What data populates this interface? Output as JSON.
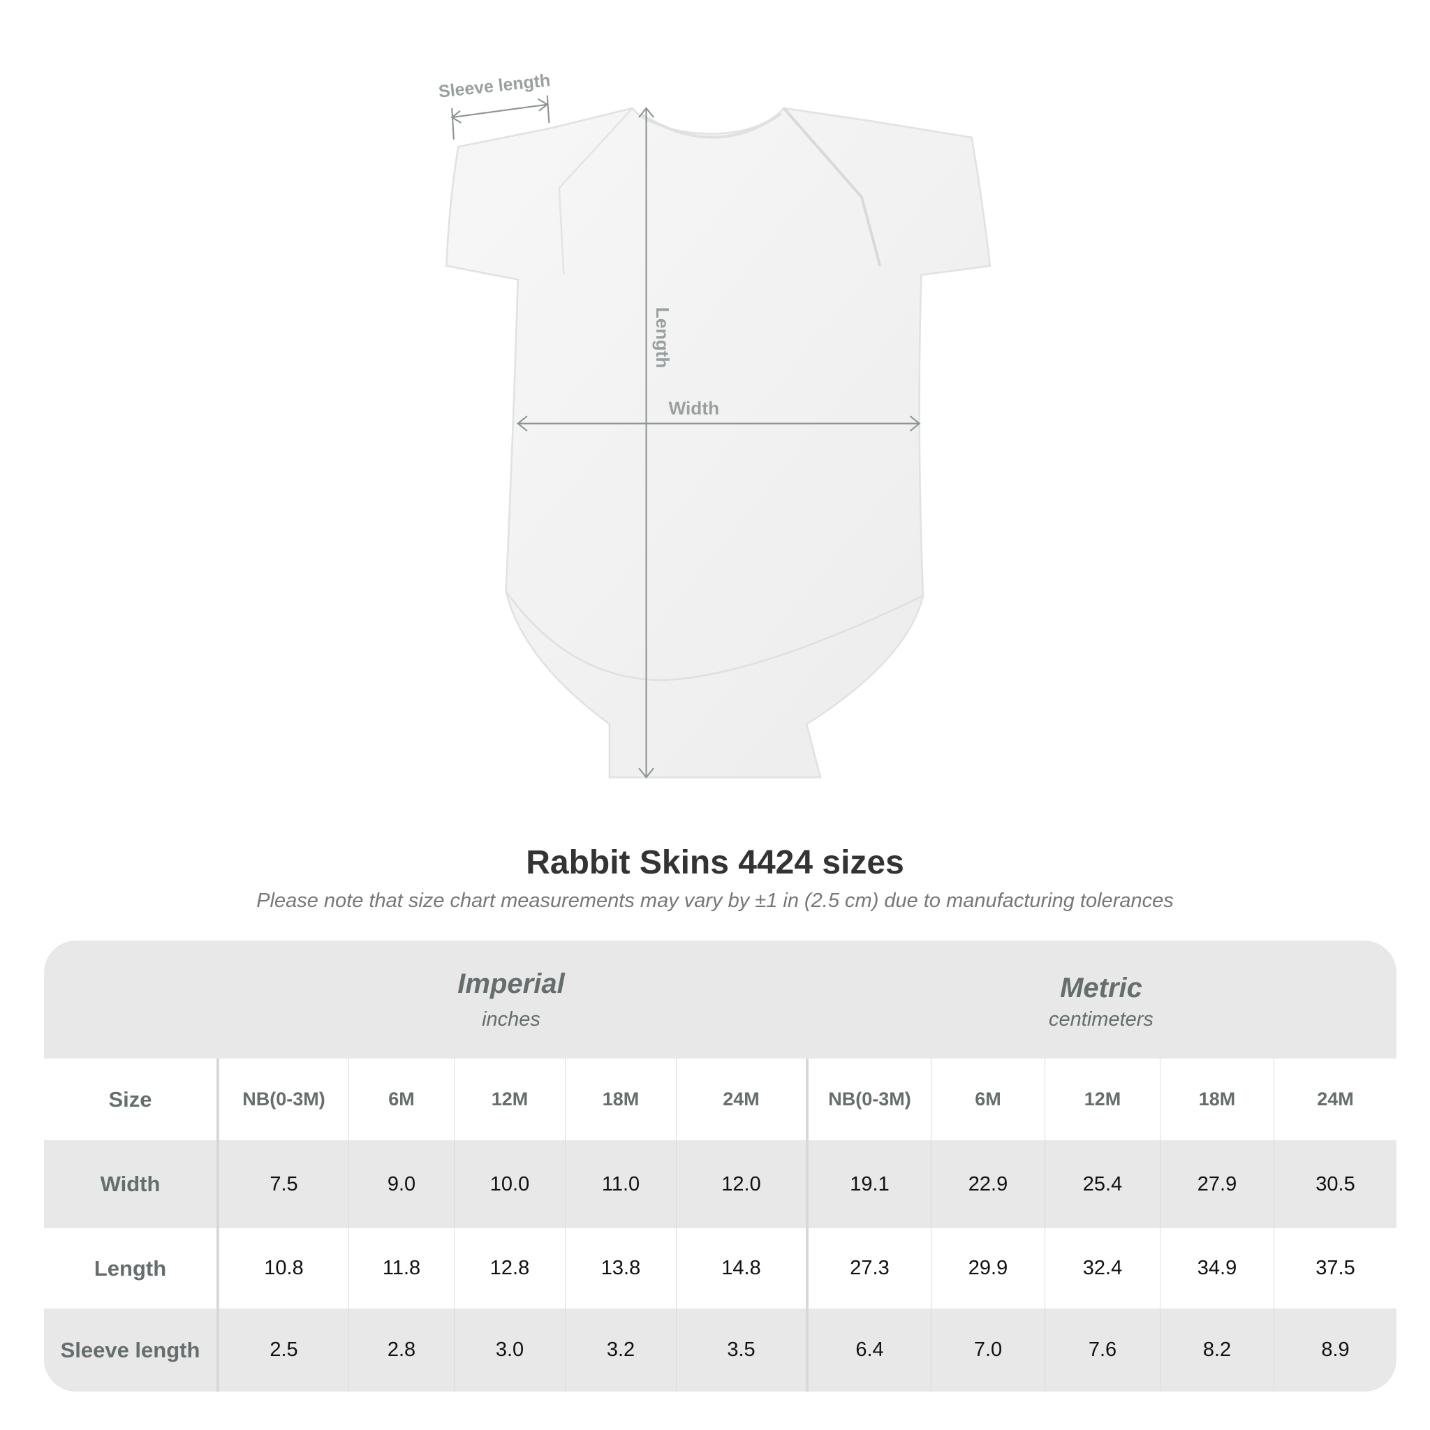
{
  "diagram": {
    "labels": {
      "sleeve": "Sleeve length",
      "length": "Length",
      "width": "Width"
    },
    "garment_color": "#f4f4f4",
    "line_color": "#8e9494"
  },
  "title": "Rabbit Skins 4424 sizes",
  "subtitle": "Please note that size chart measurements may vary by ±1 in (2.5 cm) due to manufacturing tolerances",
  "table": {
    "imperial": {
      "title": "Imperial",
      "unit": "inches"
    },
    "metric": {
      "title": "Metric",
      "unit": "centimeters"
    },
    "size_label": "Size",
    "sizes": [
      [
        "NB",
        "(0-3M)"
      ],
      [
        "6M",
        ""
      ],
      [
        "12M",
        ""
      ],
      [
        "18M",
        ""
      ],
      [
        "24M",
        ""
      ],
      [
        "NB",
        "(0-3M)"
      ],
      [
        "6M",
        ""
      ],
      [
        "12M",
        ""
      ],
      [
        "18M",
        ""
      ],
      [
        "24M",
        ""
      ]
    ],
    "rows": [
      {
        "label": "Width",
        "values": [
          "7.5",
          "9.0",
          "10.0",
          "11.0",
          "12.0",
          "19.1",
          "22.9",
          "25.4",
          "27.9",
          "30.5"
        ]
      },
      {
        "label": "Length",
        "values": [
          "10.8",
          "11.8",
          "12.8",
          "13.8",
          "14.8",
          "27.3",
          "29.9",
          "32.4",
          "34.9",
          "37.5"
        ]
      },
      {
        "label": "Sleeve length",
        "values": [
          "2.5",
          "2.8",
          "3.0",
          "3.2",
          "3.5",
          "6.4",
          "7.0",
          "7.6",
          "8.2",
          "8.9"
        ]
      }
    ]
  }
}
